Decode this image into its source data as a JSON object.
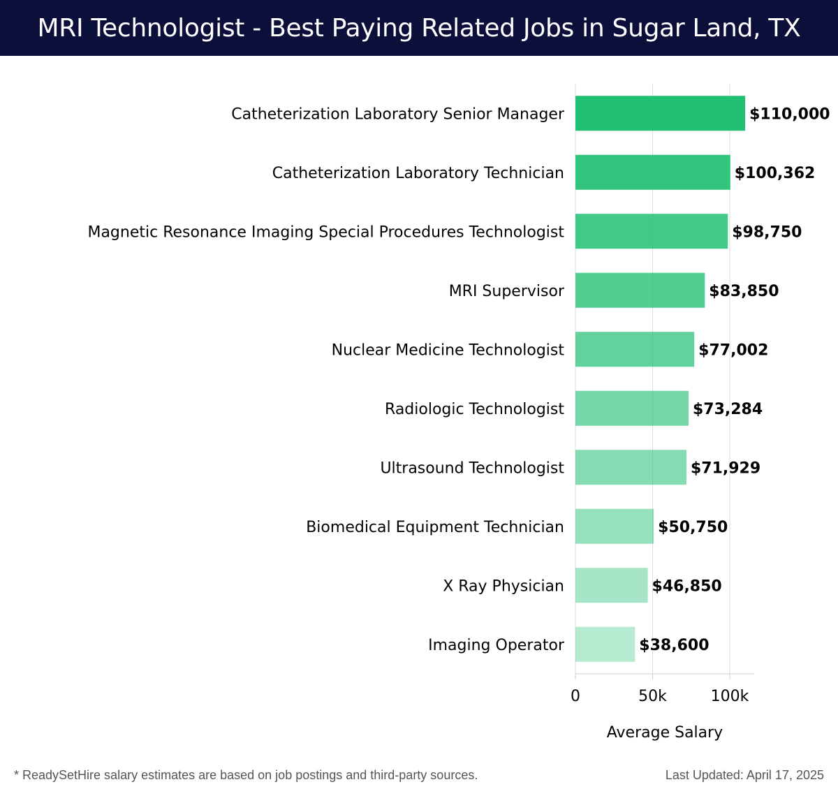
{
  "header": {
    "title": "MRI Technologist - Best Paying Related Jobs in Sugar Land, TX"
  },
  "footer": {
    "note": "* ReadySetHire salary estimates are based on job postings and third-party sources.",
    "updated": "Last Updated: April 17, 2025"
  },
  "chart_data": {
    "type": "bar",
    "orientation": "horizontal",
    "title": "MRI Technologist - Best Paying Related Jobs in Sugar Land, TX",
    "xlabel": "Average Salary",
    "ylabel": "",
    "categories": [
      "Catheterization Laboratory Senior Manager",
      "Catheterization Laboratory Technician",
      "Magnetic Resonance Imaging Special Procedures Technologist",
      "MRI Supervisor",
      "Nuclear Medicine Technologist",
      "Radiologic Technologist",
      "Ultrasound Technologist",
      "Biomedical Equipment Technician",
      "X Ray Physician",
      "Imaging Operator"
    ],
    "values": [
      110000,
      100362,
      98750,
      83850,
      77002,
      73284,
      71929,
      50750,
      46850,
      38600
    ],
    "value_labels": [
      "$110,000",
      "$100,362",
      "$98,750",
      "$83,850",
      "$77,002",
      "$73,284",
      "$71,929",
      "$50,750",
      "$46,850",
      "$38,600"
    ],
    "xlim": [
      0,
      115000
    ],
    "xticks": [
      0,
      50000,
      100000
    ],
    "xtick_labels": [
      "0",
      "50k",
      "100k"
    ],
    "grid": true,
    "bar_color": "#20bf72"
  }
}
